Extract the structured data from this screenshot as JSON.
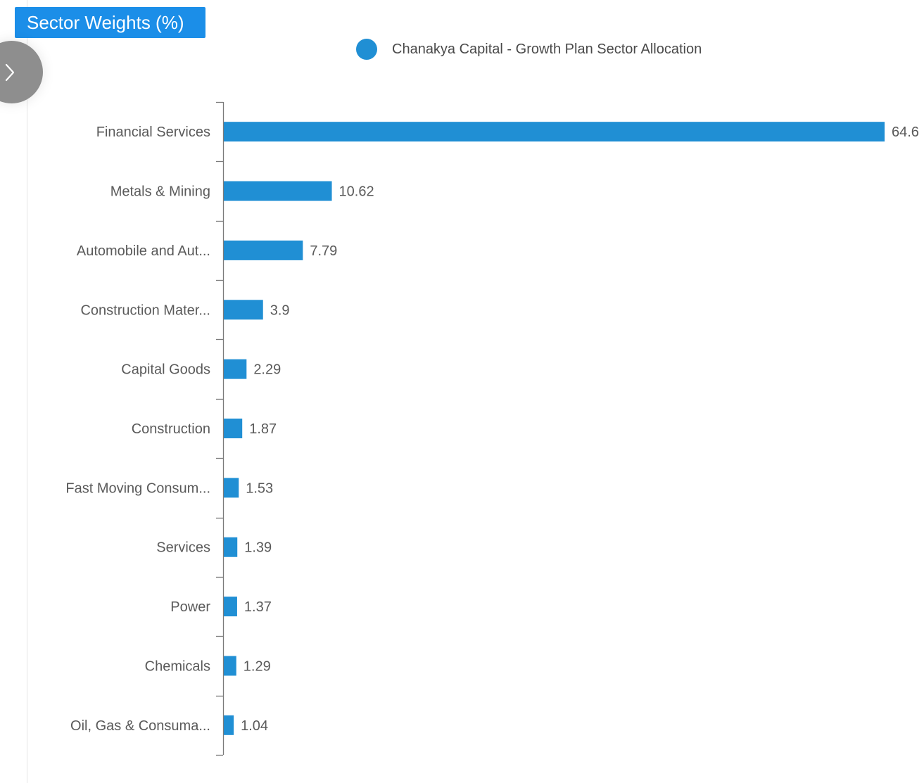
{
  "header": {
    "title": "Sector Weights (%)",
    "toggle_icon": "chevron-right-icon"
  },
  "legend": {
    "label": "Chanakya Capital - Growth Plan Sector Allocation",
    "color": "#208fd4"
  },
  "chart_data": {
    "type": "bar",
    "orientation": "horizontal",
    "title": "Sector Weights (%)",
    "categories": [
      "Financial Services",
      "Metals & Mining",
      "Automobile and Aut...",
      "Construction Mater...",
      "Capital Goods",
      "Construction",
      "Fast Moving Consum...",
      "Services",
      "Power",
      "Chemicals",
      "Oil, Gas & Consuma..."
    ],
    "series": [
      {
        "name": "Chanakya Capital - Growth Plan Sector Allocation",
        "values": [
          64.6,
          10.62,
          7.79,
          3.9,
          2.29,
          1.87,
          1.53,
          1.39,
          1.37,
          1.29,
          1.04
        ]
      }
    ],
    "value_labels": [
      "64.6",
      "10.62",
      "7.79",
      "3.9",
      "2.29",
      "1.87",
      "1.53",
      "1.39",
      "1.37",
      "1.29",
      "1.04"
    ],
    "xlim": [
      0,
      64.6
    ],
    "grid": false,
    "value_axis_visible": false,
    "legend_position": "top-center",
    "bar_color": "#208fd4"
  }
}
